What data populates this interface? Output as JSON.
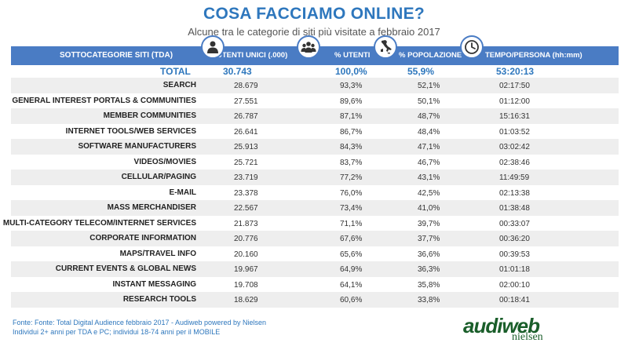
{
  "title": "COSA FACCIAMO ONLINE?",
  "subtitle": "Alcune tra le categorie di siti più visitate a febbraio 2017",
  "headers": {
    "category": "SOTTOCATEGORIE SITI  (TDA)",
    "users": "UTENTI UNICI (.000)",
    "pct_users": "% UTENTI",
    "pct_population": "% POPOLAZIONE",
    "time": "TEMPO/PERSONA (hh:mm)"
  },
  "icons": [
    "person-icon",
    "group-icon",
    "italy-map-icon",
    "clock-icon"
  ],
  "total": {
    "label": "TOTAL",
    "users": "30.743",
    "pct_users": "100,0%",
    "pct_population": "55,9%",
    "time": "53:20:13"
  },
  "chart_data": {
    "type": "table",
    "title": "COSA FACCIAMO ONLINE?",
    "columns": [
      "SOTTOCATEGORIE SITI  (TDA)",
      "UTENTI UNICI (.000)",
      "% UTENTI",
      "% POPOLAZIONE",
      "TEMPO/PERSONA (hh:mm)"
    ],
    "rows": [
      {
        "category": "SEARCH",
        "users": "28.679",
        "pct_users": "93,3%",
        "pct_population": "52,1%",
        "time": "02:17:50"
      },
      {
        "category": "GENERAL INTEREST PORTALS & COMMUNITIES",
        "users": "27.551",
        "pct_users": "89,6%",
        "pct_population": "50,1%",
        "time": "01:12:00"
      },
      {
        "category": "MEMBER COMMUNITIES",
        "users": "26.787",
        "pct_users": "87,1%",
        "pct_population": "48,7%",
        "time": "15:16:31"
      },
      {
        "category": "INTERNET TOOLS/WEB SERVICES",
        "users": "26.641",
        "pct_users": "86,7%",
        "pct_population": "48,4%",
        "time": "01:03:52"
      },
      {
        "category": "SOFTWARE MANUFACTURERS",
        "users": "25.913",
        "pct_users": "84,3%",
        "pct_population": "47,1%",
        "time": "03:02:42"
      },
      {
        "category": "VIDEOS/MOVIES",
        "users": "25.721",
        "pct_users": "83,7%",
        "pct_population": "46,7%",
        "time": "02:38:46"
      },
      {
        "category": "CELLULAR/PAGING",
        "users": "23.719",
        "pct_users": "77,2%",
        "pct_population": "43,1%",
        "time": "11:49:59"
      },
      {
        "category": "E-MAIL",
        "users": "23.378",
        "pct_users": "76,0%",
        "pct_population": "42,5%",
        "time": "02:13:38"
      },
      {
        "category": "MASS MERCHANDISER",
        "users": "22.567",
        "pct_users": "73,4%",
        "pct_population": "41,0%",
        "time": "01:38:48"
      },
      {
        "category": "MULTI-CATEGORY TELECOM/INTERNET SERVICES",
        "users": "21.873",
        "pct_users": "71,1%",
        "pct_population": "39,7%",
        "time": "00:33:07"
      },
      {
        "category": "CORPORATE INFORMATION",
        "users": "20.776",
        "pct_users": "67,6%",
        "pct_population": "37,7%",
        "time": "00:36:20"
      },
      {
        "category": "MAPS/TRAVEL INFO",
        "users": "20.160",
        "pct_users": "65,6%",
        "pct_population": "36,6%",
        "time": "00:39:53"
      },
      {
        "category": "CURRENT EVENTS & GLOBAL NEWS",
        "users": "19.967",
        "pct_users": "64,9%",
        "pct_population": "36,3%",
        "time": "01:01:18"
      },
      {
        "category": "INSTANT MESSAGING",
        "users": "19.708",
        "pct_users": "64,1%",
        "pct_population": "35,8%",
        "time": "02:00:10"
      },
      {
        "category": "RESEARCH TOOLS",
        "users": "18.629",
        "pct_users": "60,6%",
        "pct_population": "33,8%",
        "time": "00:18:41"
      }
    ]
  },
  "footer": {
    "line1": "Fonte: Fonte: Total Digital Audience febbraio 2017 - Audiweb powered by Nielsen",
    "line2": "Individui 2+ anni per TDA e PC; individui 18-74 anni per il MOBILE"
  },
  "logo": {
    "main": "audiweb",
    "sub": "nielsen"
  },
  "colors": {
    "accent": "#2e77bd",
    "header_bg": "#4a7cc4",
    "row_alt": "#eeeeee",
    "logo": "#1a5e2a"
  }
}
